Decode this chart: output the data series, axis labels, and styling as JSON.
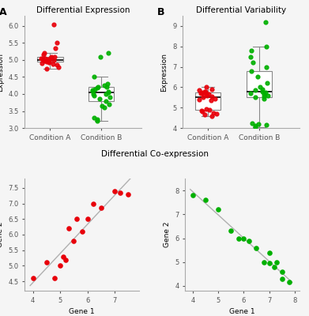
{
  "panel_A_title": "Differential Expression",
  "panel_B_title": "Differential Variability",
  "panel_C_title": "Differential Co-expression",
  "ylabel_AB": "Expression",
  "xlabel_C": "Gene 1",
  "ylabel_C": "Gene 2",
  "cond_labels": [
    "Condition A",
    "Condition B"
  ],
  "red": "#e8000a",
  "green": "#00b000",
  "gray_line": "#c0c0c0",
  "box_color": "#d0d0d0",
  "A_red": [
    5.0,
    5.1,
    5.05,
    4.95,
    5.0,
    5.02,
    4.98,
    5.03,
    4.97,
    5.08,
    4.93,
    5.0,
    5.05,
    4.85,
    4.9,
    4.88,
    4.95,
    5.1,
    5.15,
    5.2,
    5.35,
    4.78,
    4.75,
    6.05,
    5.5
  ],
  "A_green": [
    4.05,
    4.0,
    4.1,
    4.15,
    4.08,
    3.95,
    3.85,
    3.7,
    3.65,
    3.6,
    4.2,
    4.25,
    4.3,
    4.12,
    4.0,
    3.9,
    3.8,
    4.18,
    4.22,
    4.5,
    5.1,
    5.2,
    3.25,
    3.2,
    3.3
  ],
  "B_red": [
    6.0,
    5.9,
    5.85,
    5.8,
    5.75,
    5.7,
    5.72,
    5.78,
    5.68,
    5.65,
    5.6,
    5.55,
    5.5,
    5.45,
    5.4,
    5.35,
    4.95,
    4.9,
    4.85,
    4.8,
    4.75,
    4.7,
    4.65,
    4.6
  ],
  "B_green": [
    9.2,
    8.0,
    7.8,
    7.5,
    7.2,
    7.0,
    6.8,
    6.5,
    6.2,
    6.0,
    5.9,
    5.85,
    5.8,
    5.75,
    5.7,
    5.65,
    5.6,
    5.55,
    5.5,
    5.45,
    4.25,
    4.2,
    4.15,
    4.1,
    4.05
  ],
  "C_red_x": [
    4.0,
    4.5,
    4.8,
    5.0,
    5.1,
    5.2,
    5.3,
    5.5,
    5.6,
    5.8,
    6.0,
    6.2,
    6.5,
    7.0,
    7.2,
    7.5
  ],
  "C_red_y": [
    4.6,
    5.1,
    4.6,
    5.0,
    5.3,
    5.2,
    6.2,
    5.8,
    6.5,
    6.1,
    6.5,
    7.0,
    6.85,
    7.4,
    7.35,
    7.3
  ],
  "C_green_x": [
    4.0,
    4.5,
    5.0,
    5.5,
    5.8,
    6.0,
    6.2,
    6.5,
    6.8,
    7.0,
    7.0,
    7.2,
    7.3,
    7.5,
    7.5,
    7.8
  ],
  "C_green_y": [
    7.8,
    7.6,
    7.2,
    6.3,
    6.0,
    6.0,
    5.9,
    5.6,
    5.0,
    4.95,
    5.4,
    4.8,
    5.0,
    4.6,
    4.3,
    4.15
  ],
  "bg_color": "#f5f5f5"
}
